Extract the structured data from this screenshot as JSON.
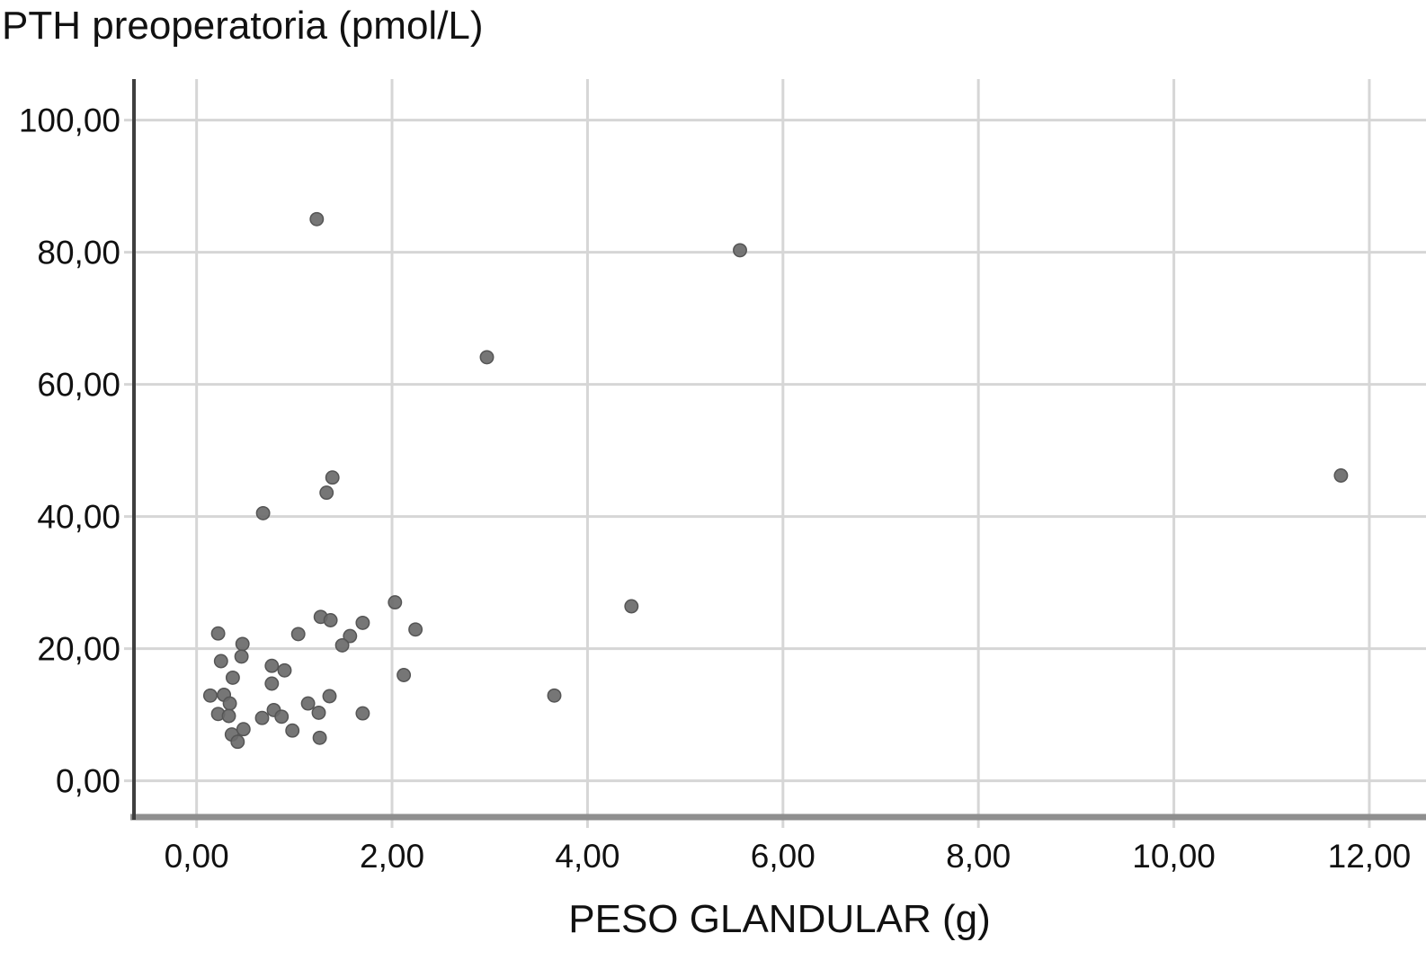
{
  "page": {
    "background": "#ffffff"
  },
  "chart_data": {
    "type": "scatter",
    "title": "PTH preoperatoria (pmol/L)",
    "xlabel": "PESO GLANDULAR (g)",
    "ylabel": "",
    "xlim": [
      -0.65,
      12.58
    ],
    "ylim": [
      -5.5,
      106.2
    ],
    "x_ticks": [
      0,
      2,
      4,
      6,
      8,
      10,
      12
    ],
    "x_tick_labels": [
      "0,00",
      "2,00",
      "4,00",
      "6,00",
      "8,00",
      "10,00",
      "12,00"
    ],
    "y_ticks": [
      0,
      20,
      40,
      60,
      80,
      100
    ],
    "y_tick_labels": [
      "0,00",
      "20,00",
      "40,00",
      "60,00",
      "80,00",
      "100,00"
    ],
    "grid": true,
    "legend": false,
    "colors": {
      "point_fill": "#6a6a6a",
      "point_stroke": "#555555",
      "grid": "#d6d6d6",
      "y_axis": "#3f3f3f",
      "x_axis_base": "#8f8f8f",
      "text": "#111111"
    },
    "points": [
      [
        1.23,
        85.0
      ],
      [
        5.56,
        80.3
      ],
      [
        2.97,
        64.1
      ],
      [
        11.71,
        46.2
      ],
      [
        1.39,
        45.9
      ],
      [
        1.33,
        43.6
      ],
      [
        0.68,
        40.5
      ],
      [
        4.45,
        26.4
      ],
      [
        3.66,
        12.9
      ],
      [
        2.03,
        27.0
      ],
      [
        2.24,
        22.9
      ],
      [
        2.12,
        16.0
      ],
      [
        1.7,
        23.9
      ],
      [
        1.7,
        10.2
      ],
      [
        1.57,
        21.9
      ],
      [
        1.49,
        20.5
      ],
      [
        1.27,
        24.8
      ],
      [
        1.37,
        24.3
      ],
      [
        1.04,
        22.2
      ],
      [
        0.22,
        22.3
      ],
      [
        0.47,
        20.7
      ],
      [
        0.46,
        18.8
      ],
      [
        0.25,
        18.1
      ],
      [
        0.77,
        17.4
      ],
      [
        0.9,
        16.7
      ],
      [
        0.77,
        14.7
      ],
      [
        0.37,
        15.6
      ],
      [
        0.14,
        12.9
      ],
      [
        0.28,
        13.0
      ],
      [
        0.34,
        11.7
      ],
      [
        0.22,
        10.1
      ],
      [
        0.33,
        9.8
      ],
      [
        0.79,
        10.7
      ],
      [
        0.87,
        9.7
      ],
      [
        0.67,
        9.5
      ],
      [
        0.98,
        7.6
      ],
      [
        1.14,
        11.7
      ],
      [
        1.25,
        10.3
      ],
      [
        1.36,
        12.8
      ],
      [
        1.26,
        6.5
      ],
      [
        0.36,
        7.0
      ],
      [
        0.48,
        7.8
      ],
      [
        0.42,
        5.9
      ]
    ]
  }
}
